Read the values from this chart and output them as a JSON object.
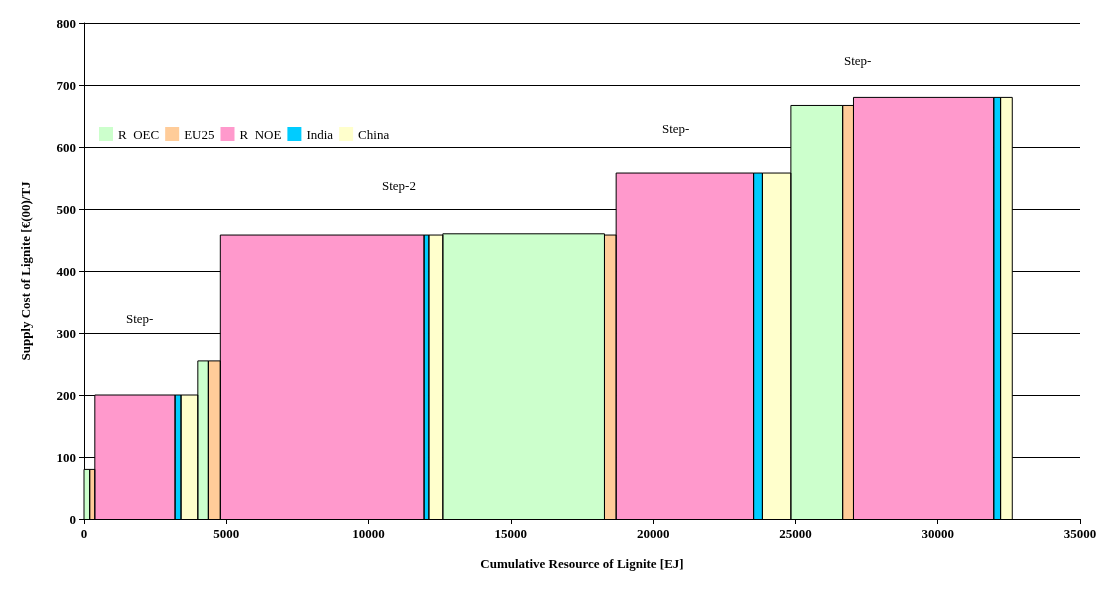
{
  "chart_data": {
    "type": "area",
    "xlabel": "Cumulative Resource of Lignite [EJ]",
    "ylabel": "Supply Cost of Lignite [€(00)/TJ",
    "xlim": [
      0,
      35000
    ],
    "xticks": [
      0,
      5000,
      10000,
      15000,
      20000,
      25000,
      30000,
      35000
    ],
    "ylim": [
      0,
      800
    ],
    "yticks": [
      0,
      100,
      200,
      300,
      400,
      500,
      600,
      700,
      800
    ],
    "grid": "y",
    "legend": "top left",
    "marker": "none",
    "series": [
      {
        "name": "R  OEC",
        "color": "#ccffcc",
        "x": [
          0,
          0,
          200,
          200,
          null,
          4000,
          4000,
          4370,
          4370,
          null,
          12610,
          12610,
          18290,
          18290,
          null,
          24840,
          24840,
          26660,
          26660
        ],
        "values": [
          0,
          80,
          80,
          0,
          null,
          0,
          255,
          255,
          0,
          null,
          0,
          460,
          460,
          0,
          null,
          0,
          667,
          667,
          0
        ]
      },
      {
        "name": "EU25",
        "color": "#ffcc99",
        "x": [
          200,
          200,
          380,
          380,
          null,
          4370,
          4370,
          4790,
          4790,
          null,
          18290,
          18290,
          18700,
          18700,
          null,
          26660,
          26660,
          27040,
          27040
        ],
        "values": [
          0,
          80,
          80,
          0,
          null,
          0,
          255,
          255,
          0,
          null,
          0,
          458,
          458,
          0,
          null,
          0,
          667,
          667,
          0
        ]
      },
      {
        "name": "R  NOE",
        "color": "#ff99cc",
        "x": [
          380,
          380,
          3200,
          3200,
          null,
          4790,
          4790,
          11950,
          11950,
          null,
          18700,
          18700,
          23530,
          23530,
          null,
          27040,
          27040,
          31970,
          31970
        ],
        "values": [
          0,
          200,
          200,
          0,
          null,
          0,
          458,
          458,
          0,
          null,
          0,
          558,
          558,
          0,
          null,
          0,
          680,
          680,
          0
        ]
      },
      {
        "name": "India",
        "color": "#00ccff",
        "x": [
          3200,
          3200,
          3410,
          3410,
          null,
          11950,
          11950,
          12120,
          12120,
          null,
          23530,
          23530,
          23840,
          23840,
          null,
          31970,
          31970,
          32210,
          32210
        ],
        "values": [
          0,
          200,
          200,
          0,
          null,
          0,
          458,
          458,
          0,
          null,
          0,
          558,
          558,
          0,
          null,
          0,
          680,
          680,
          0
        ]
      },
      {
        "name": "China",
        "color": "#ffffcc",
        "x": [
          3410,
          3410,
          4000,
          4000,
          null,
          12120,
          12120,
          12610,
          12610,
          null,
          23840,
          23840,
          24840,
          24840,
          null,
          32210,
          32210,
          32620,
          32620
        ],
        "values": [
          0,
          200,
          200,
          0,
          null,
          0,
          458,
          458,
          0,
          null,
          0,
          558,
          558,
          0,
          null,
          0,
          680,
          680,
          0
        ]
      }
    ],
    "annotations": [
      "Step-",
      "Step-2",
      "Step-",
      "Step-"
    ]
  }
}
